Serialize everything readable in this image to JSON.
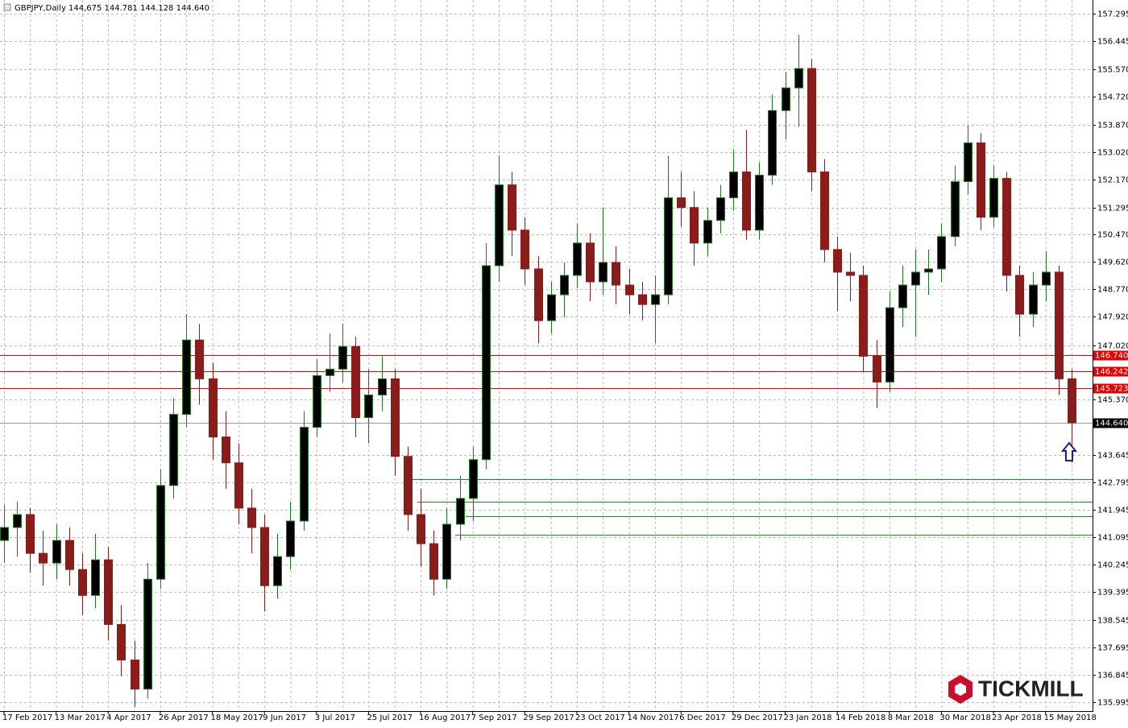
{
  "chart_data": {
    "type": "candlestick",
    "title": "GBPJPY,Daily",
    "subtitle": "144,675 144.781 144.128 144.640",
    "categories": [
      "17 Feb 2017",
      null,
      null,
      null,
      "13 Mar 2017",
      null,
      null,
      null,
      "4 Apr 2017",
      null,
      null,
      null,
      "26 Apr 2017",
      null,
      null,
      null,
      "18 May 2017",
      null,
      null,
      null,
      "9 Jun 2017",
      null,
      null,
      null,
      "3 Jul 2017",
      null,
      null,
      null,
      "25 Jul 2017",
      null,
      null,
      null,
      "16 Aug 2017",
      null,
      null,
      null,
      "7 Sep 2017",
      null,
      null,
      null,
      "29 Sep 2017",
      null,
      null,
      null,
      "23 Oct 2017",
      null,
      null,
      null,
      "14 Nov 2017",
      null,
      null,
      null,
      "6 Dec 2017",
      null,
      null,
      null,
      "29 Dec 2017",
      null,
      null,
      null,
      "23 Jan 2018",
      null,
      null,
      null,
      "14 Feb 2018",
      null,
      null,
      null,
      "8 Mar 2018",
      null,
      null,
      null,
      "30 Mar 2018",
      null,
      null,
      null,
      "23 Apr 2018",
      null,
      null,
      null,
      "15 May 2018",
      null,
      null
    ],
    "open": [
      141.0,
      141.4,
      141.8,
      140.6,
      140.3,
      141.0,
      140.1,
      139.3,
      140.4,
      138.4,
      137.3,
      136.4,
      139.8,
      142.7,
      144.9,
      147.2,
      146.0,
      144.2,
      143.4,
      142.0,
      141.4,
      139.6,
      140.5,
      141.6,
      144.5,
      146.1,
      146.3,
      147.0,
      144.8,
      145.5,
      146.0,
      143.6,
      141.8,
      140.9,
      139.8,
      141.5,
      142.3,
      143.5,
      149.5,
      152.0,
      150.6,
      149.4,
      147.8,
      148.6,
      149.2,
      150.2,
      149.0,
      149.6,
      148.9,
      148.6,
      148.3,
      148.6,
      151.6,
      151.3,
      150.2,
      150.9,
      151.6,
      152.4,
      150.6,
      152.3,
      154.3,
      155.0,
      155.6,
      152.4,
      150.0,
      149.3,
      149.2,
      146.7,
      145.9,
      148.2,
      148.9,
      149.3,
      149.4,
      150.4,
      152.1,
      153.3,
      151.0,
      152.2,
      149.2,
      148.0,
      148.9,
      149.3,
      146.0
    ],
    "high": [
      142.1,
      142.2,
      142.0,
      141.3,
      141.5,
      141.4,
      140.6,
      141.2,
      140.8,
      139.0,
      137.9,
      140.3,
      143.2,
      145.4,
      148.0,
      147.7,
      146.5,
      145.0,
      144.0,
      142.6,
      141.8,
      141.2,
      142.2,
      145.0,
      146.6,
      147.4,
      147.7,
      147.3,
      146.3,
      146.7,
      146.3,
      143.9,
      142.6,
      141.3,
      142.0,
      143.0,
      143.9,
      150.2,
      152.9,
      152.4,
      151.0,
      149.8,
      149.0,
      149.6,
      150.8,
      150.5,
      151.3,
      150.1,
      149.4,
      149.0,
      149.2,
      152.9,
      152.4,
      151.8,
      151.3,
      152.0,
      153.1,
      153.7,
      152.7,
      154.8,
      155.5,
      156.65,
      155.9,
      152.8,
      150.4,
      149.9,
      149.5,
      147.2,
      148.7,
      149.5,
      150.0,
      150.0,
      150.8,
      152.6,
      153.85,
      153.6,
      152.6,
      152.4,
      149.5,
      149.3,
      149.95,
      149.5,
      146.3
    ],
    "low": [
      140.3,
      140.5,
      140.0,
      139.6,
      139.8,
      139.6,
      138.7,
      138.9,
      137.9,
      136.8,
      135.85,
      136.1,
      139.5,
      142.3,
      144.5,
      145.2,
      143.5,
      142.6,
      141.5,
      140.6,
      138.8,
      139.2,
      140.1,
      141.3,
      144.2,
      145.6,
      145.9,
      144.2,
      144.0,
      145.0,
      143.0,
      141.3,
      140.2,
      139.3,
      139.5,
      141.0,
      141.6,
      143.2,
      149.0,
      149.8,
      148.9,
      147.1,
      147.4,
      147.9,
      148.8,
      148.4,
      148.6,
      148.3,
      148.0,
      147.8,
      147.1,
      148.3,
      150.7,
      149.5,
      149.8,
      150.5,
      151.2,
      150.3,
      150.3,
      152.0,
      153.4,
      153.8,
      151.8,
      149.6,
      148.1,
      148.4,
      146.2,
      145.1,
      145.6,
      147.6,
      147.3,
      148.6,
      149.0,
      150.1,
      151.7,
      150.6,
      150.7,
      148.7,
      147.3,
      147.6,
      148.4,
      145.5,
      143.4
    ],
    "close": [
      141.4,
      141.8,
      140.6,
      140.3,
      141.0,
      140.1,
      139.3,
      140.4,
      138.4,
      137.3,
      136.4,
      139.8,
      142.7,
      144.9,
      147.2,
      146.0,
      144.2,
      143.4,
      142.0,
      141.4,
      139.6,
      140.5,
      141.6,
      144.5,
      146.1,
      146.3,
      147.0,
      144.8,
      145.5,
      146.0,
      143.6,
      141.8,
      140.9,
      139.8,
      141.5,
      142.3,
      143.5,
      149.5,
      152.0,
      150.6,
      149.4,
      147.8,
      148.6,
      149.2,
      150.2,
      149.0,
      149.6,
      148.9,
      148.6,
      148.3,
      148.6,
      151.6,
      151.3,
      150.2,
      150.9,
      151.6,
      152.4,
      150.6,
      152.3,
      154.3,
      155.0,
      155.6,
      152.4,
      150.0,
      149.3,
      149.2,
      146.7,
      145.9,
      148.2,
      148.9,
      149.3,
      149.4,
      150.4,
      152.1,
      153.3,
      151.0,
      152.2,
      149.2,
      148.0,
      148.9,
      149.3,
      146.0,
      144.64
    ],
    "bull_color": "#1f7a1f",
    "bear_color": "#8b1c1c",
    "ylim": [
      135.72,
      157.72
    ],
    "yticks": [
      157.295,
      156.445,
      {
        "value": 155.57,
        "label": "155.570"
      },
      {
        "value": 154.72,
        "label": "154.720"
      },
      {
        "value": 153.87,
        "label": "153.870"
      },
      {
        "value": 153.02,
        "label": "153.020"
      },
      {
        "value": 152.17,
        "label": "152.170"
      },
      151.295,
      {
        "value": 150.47,
        "label": "150.470"
      },
      {
        "value": 149.62,
        "label": "149.620"
      },
      {
        "value": 148.77,
        "label": "148.770"
      },
      {
        "value": 147.92,
        "label": "147.920"
      },
      {
        "value": 147.02,
        "label": "147.020"
      },
      {
        "value": 145.37,
        "label": "145.370"
      },
      143.645,
      142.795,
      141.945,
      141.095,
      140.245,
      139.395,
      138.545,
      137.695,
      136.845,
      135.995
    ],
    "grid": true,
    "levels": [
      {
        "value": 146.74,
        "label": "146.740",
        "color": "#e00000"
      },
      {
        "value": 146.242,
        "label": "146.242",
        "color": "#e00000"
      },
      {
        "value": 145.723,
        "label": "145.723",
        "color": "#e00000"
      },
      {
        "value": 142.9,
        "color": "#1e8a1e"
      },
      {
        "value": 142.2,
        "color": "#1e8a1e"
      },
      {
        "value": 141.75,
        "color": "#1e8a1e"
      },
      {
        "value": 141.18,
        "color": "#1e8a1e"
      }
    ],
    "last": {
      "value": 144.64,
      "label": "144.640"
    },
    "watermark": "TICKMILL"
  }
}
